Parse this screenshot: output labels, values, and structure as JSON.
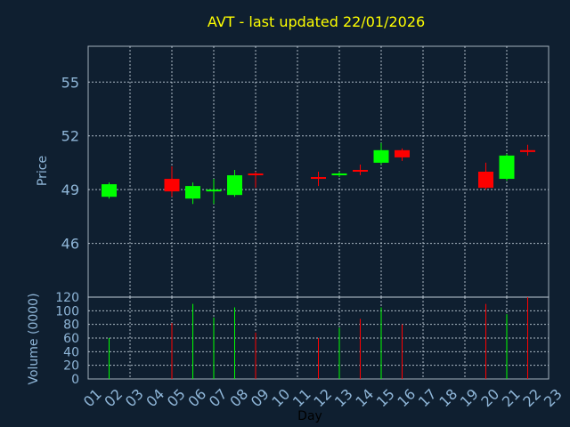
{
  "title": "AVT - last updated 22/01/2026",
  "colors": {
    "background": "#0f1f30",
    "up": "#00ff00",
    "down": "#ff0000",
    "title": "#ffff00",
    "axis_text": "#8fb6d8"
  },
  "chart_data": [
    {
      "type": "candlestick",
      "title": "AVT - last updated 22/01/2026",
      "ylabel": "Price",
      "ylim": [
        43,
        57
      ],
      "yticks": [
        46,
        49,
        52,
        55
      ],
      "grid": true,
      "candles": [
        {
          "day": "02",
          "open": 48.6,
          "high": 49.4,
          "low": 48.5,
          "close": 49.3
        },
        {
          "day": "05",
          "open": 49.6,
          "high": 50.3,
          "low": 48.6,
          "close": 48.9
        },
        {
          "day": "06",
          "open": 48.5,
          "high": 49.4,
          "low": 48.2,
          "close": 49.2
        },
        {
          "day": "07",
          "open": 48.9,
          "high": 49.6,
          "low": 48.2,
          "close": 49.0
        },
        {
          "day": "08",
          "open": 48.7,
          "high": 50.1,
          "low": 48.6,
          "close": 49.8
        },
        {
          "day": "09",
          "open": 49.9,
          "high": 50.0,
          "low": 49.1,
          "close": 49.8
        },
        {
          "day": "12",
          "open": 49.7,
          "high": 50.0,
          "low": 49.2,
          "close": 49.6
        },
        {
          "day": "13",
          "open": 49.8,
          "high": 50.0,
          "low": 49.7,
          "close": 49.9
        },
        {
          "day": "14",
          "open": 50.1,
          "high": 50.4,
          "low": 49.8,
          "close": 50.0
        },
        {
          "day": "15",
          "open": 50.5,
          "high": 51.6,
          "low": 50.4,
          "close": 51.2
        },
        {
          "day": "16",
          "open": 51.2,
          "high": 51.3,
          "low": 50.6,
          "close": 50.8
        },
        {
          "day": "20",
          "open": 50.0,
          "high": 50.5,
          "low": 49.0,
          "close": 49.1
        },
        {
          "day": "21",
          "open": 49.6,
          "high": 51.0,
          "low": 49.5,
          "close": 50.9
        },
        {
          "day": "22",
          "open": 51.2,
          "high": 51.5,
          "low": 50.9,
          "close": 51.1
        }
      ]
    },
    {
      "type": "bar",
      "ylabel": "Volume (0000)",
      "xlabel": "Day",
      "ylim": [
        0,
        120
      ],
      "yticks": [
        0,
        20,
        40,
        60,
        80,
        100,
        120
      ],
      "categories": [
        "01",
        "02",
        "03",
        "04",
        "05",
        "06",
        "07",
        "08",
        "09",
        "10",
        "11",
        "12",
        "13",
        "14",
        "15",
        "16",
        "17",
        "18",
        "19",
        "20",
        "21",
        "22",
        "23"
      ],
      "volumes": [
        {
          "day": "02",
          "value": 60,
          "direction": "up"
        },
        {
          "day": "05",
          "value": 82,
          "direction": "down"
        },
        {
          "day": "06",
          "value": 110,
          "direction": "up"
        },
        {
          "day": "07",
          "value": 90,
          "direction": "up"
        },
        {
          "day": "08",
          "value": 105,
          "direction": "up"
        },
        {
          "day": "09",
          "value": 68,
          "direction": "down"
        },
        {
          "day": "12",
          "value": 60,
          "direction": "down"
        },
        {
          "day": "13",
          "value": 75,
          "direction": "up"
        },
        {
          "day": "14",
          "value": 88,
          "direction": "down"
        },
        {
          "day": "15",
          "value": 105,
          "direction": "up"
        },
        {
          "day": "16",
          "value": 80,
          "direction": "down"
        },
        {
          "day": "20",
          "value": 110,
          "direction": "down"
        },
        {
          "day": "21",
          "value": 95,
          "direction": "up"
        },
        {
          "day": "22",
          "value": 120,
          "direction": "down"
        }
      ]
    }
  ]
}
